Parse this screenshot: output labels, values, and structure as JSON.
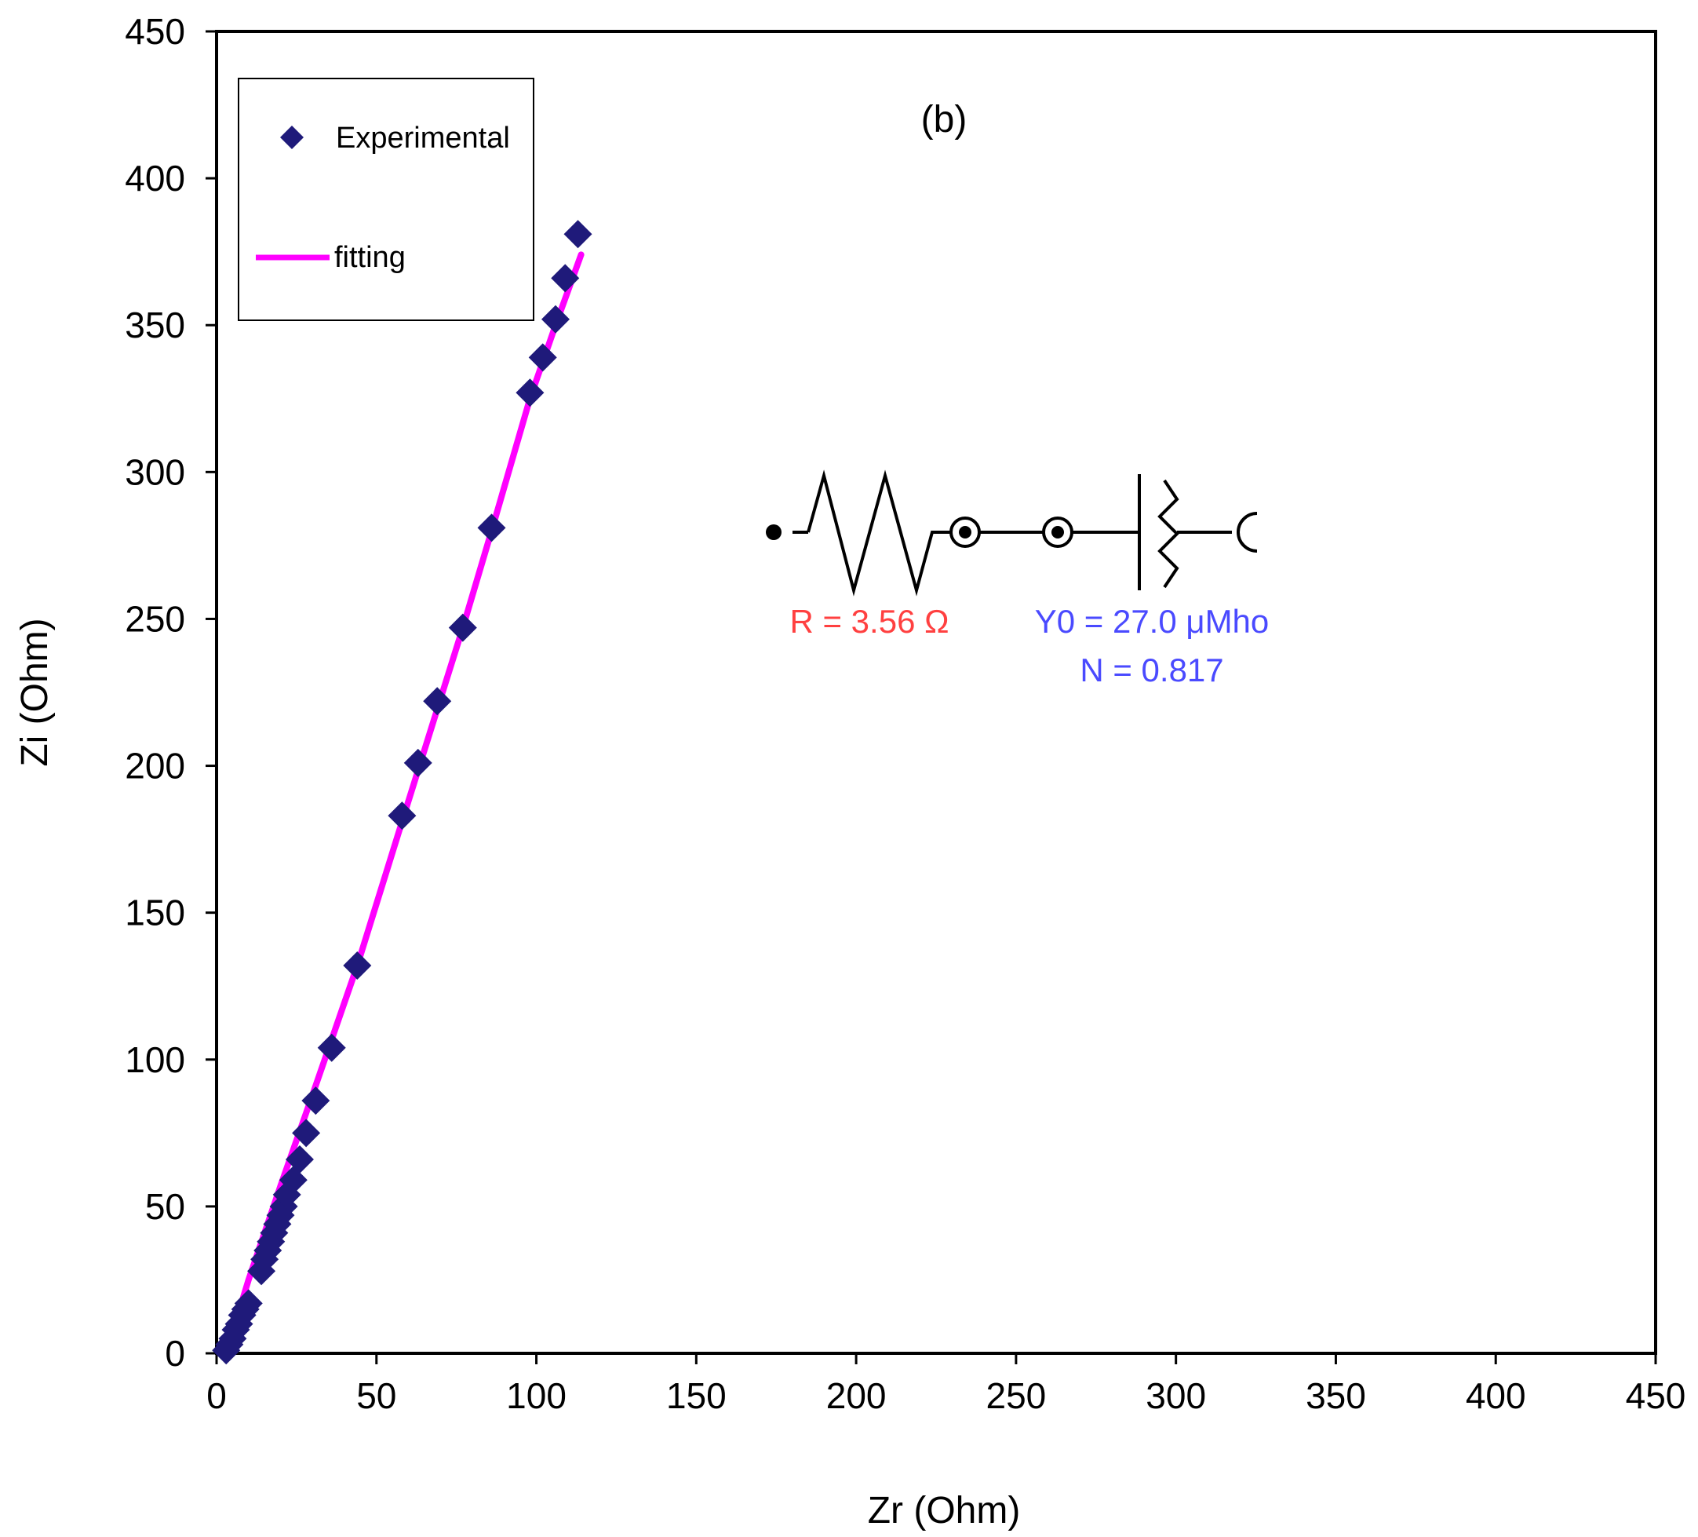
{
  "chart_data": {
    "type": "scatter",
    "panel_label": "(b)",
    "xlabel": "Zr (Ohm)",
    "ylabel": "Zi (Ohm)",
    "xlim": [
      0,
      450
    ],
    "ylim": [
      0,
      450
    ],
    "xticks": [
      0,
      50,
      100,
      150,
      200,
      250,
      300,
      350,
      400,
      450
    ],
    "yticks": [
      0,
      50,
      100,
      150,
      200,
      250,
      300,
      350,
      400,
      450
    ],
    "grid": false,
    "legend_position": "top-left",
    "series": [
      {
        "name": "Experimental",
        "kind": "markers",
        "marker": "diamond",
        "color": "#1f1a7a",
        "x": [
          3,
          4,
          5,
          6,
          7,
          8,
          9,
          10,
          14,
          15,
          16,
          17,
          18,
          19,
          20,
          21,
          22,
          24,
          26,
          28,
          31,
          36,
          44,
          58,
          63,
          69,
          77,
          86,
          98,
          102,
          106,
          109,
          113
        ],
        "y": [
          1,
          3,
          5,
          8,
          10,
          13,
          15,
          17,
          28,
          32,
          35,
          38,
          41,
          44,
          47,
          50,
          54,
          59,
          66,
          75,
          86,
          104,
          132,
          183,
          201,
          222,
          247,
          281,
          327,
          339,
          352,
          366,
          381
        ]
      },
      {
        "name": "fitting",
        "kind": "line",
        "color": "#ff00ff",
        "x": [
          3,
          10,
          20,
          30,
          44,
          60,
          77,
          86,
          98,
          106,
          114
        ],
        "y": [
          0,
          25,
          57,
          88,
          132,
          188,
          247,
          280,
          325,
          350,
          374
        ]
      }
    ],
    "circuit": {
      "resistor_label": "R = 3.56 Ω",
      "cpe_y0_label": "Y0 = 27.0 μMho",
      "cpe_n_label": "N = 0.817",
      "resistor_color": "#ff4040",
      "cpe_color": "#4a4aff"
    }
  }
}
